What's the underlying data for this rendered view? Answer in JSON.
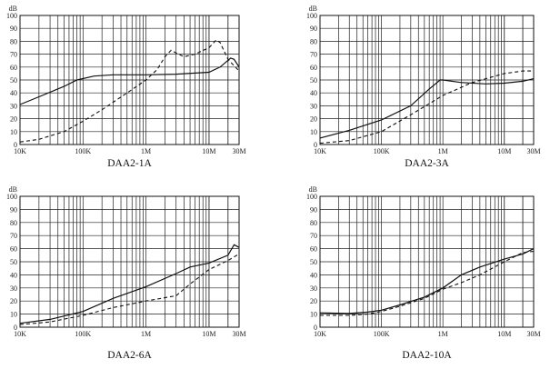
{
  "chart_data": [
    {
      "type": "line",
      "title": "DAA2-1A",
      "xscale": "log",
      "xlim": [
        "10K",
        "30M"
      ],
      "xticks": [
        "10K",
        "100K",
        "1M",
        "10M",
        "30M"
      ],
      "ylabel": "dB",
      "ylim": [
        0,
        100
      ],
      "yticks": [
        "0",
        "10",
        "20",
        "30",
        "40",
        "50",
        "60",
        "70",
        "80",
        "90",
        "100"
      ],
      "grid": true,
      "series": [
        {
          "style": "solid",
          "x": [
            10000,
            20000,
            50000,
            80000,
            150000,
            300000,
            1000000,
            3000000,
            10000000,
            15000000,
            22000000,
            25000000,
            30000000
          ],
          "y": [
            31,
            37,
            45,
            50,
            53,
            54,
            54,
            54.5,
            56,
            60,
            67,
            66,
            60
          ]
        },
        {
          "style": "dashed",
          "x": [
            10000,
            20000,
            50000,
            100000,
            200000,
            500000,
            1000000,
            1500000,
            2000000,
            2500000,
            3000000,
            4000000,
            6000000,
            10000000,
            13000000,
            15000000,
            20000000,
            30000000
          ],
          "y": [
            2,
            4,
            10,
            18,
            27,
            40,
            50,
            58,
            68,
            73,
            71,
            68,
            70,
            75,
            81,
            79,
            66,
            57
          ]
        }
      ]
    },
    {
      "type": "line",
      "title": "DAA2-3A",
      "xscale": "log",
      "xlim": [
        "10K",
        "30M"
      ],
      "xticks": [
        "10K",
        "100K",
        "1M",
        "10M",
        "30M"
      ],
      "ylabel": "dB",
      "ylim": [
        0,
        100
      ],
      "yticks": [
        "0",
        "10",
        "20",
        "30",
        "40",
        "50",
        "60",
        "70",
        "80",
        "90",
        "100"
      ],
      "grid": true,
      "series": [
        {
          "style": "solid",
          "x": [
            10000,
            30000,
            100000,
            300000,
            600000,
            900000,
            1000000,
            2000000,
            5000000,
            10000000,
            20000000,
            30000000
          ],
          "y": [
            5,
            11,
            19,
            30,
            43,
            50,
            50,
            48,
            47,
            47.5,
            49,
            51
          ]
        },
        {
          "style": "dashed",
          "x": [
            10000,
            30000,
            100000,
            300000,
            1000000,
            3000000,
            10000000,
            20000000,
            30000000
          ],
          "y": [
            1,
            3,
            10,
            23,
            38,
            48,
            55,
            57,
            57
          ]
        }
      ]
    },
    {
      "type": "line",
      "title": "DAA2-6A",
      "xscale": "log",
      "xlim": [
        "10K",
        "30M"
      ],
      "xticks": [
        "10K",
        "100K",
        "1M",
        "10M",
        "30M"
      ],
      "ylabel": "dB",
      "ylim": [
        0,
        100
      ],
      "yticks": [
        "0",
        "10",
        "20",
        "30",
        "40",
        "50",
        "60",
        "70",
        "80",
        "90",
        "100"
      ],
      "grid": true,
      "series": [
        {
          "style": "solid",
          "x": [
            10000,
            30000,
            100000,
            300000,
            1000000,
            3000000,
            5000000,
            10000000,
            20000000,
            25000000,
            30000000
          ],
          "y": [
            3,
            6,
            12,
            22,
            31,
            41,
            46,
            49,
            55,
            63,
            61
          ]
        },
        {
          "style": "dashed",
          "x": [
            10000,
            30000,
            100000,
            300000,
            1000000,
            3000000,
            5000000,
            10000000,
            20000000,
            30000000
          ],
          "y": [
            2,
            4,
            9,
            15,
            20,
            24,
            33,
            44,
            51,
            56
          ]
        }
      ]
    },
    {
      "type": "line",
      "title": "DAA2-10A",
      "xscale": "log",
      "xlim": [
        "10K",
        "30M"
      ],
      "xticks": [
        "10K",
        "100K",
        "1M",
        "10M",
        "30M"
      ],
      "ylabel": "dB",
      "ylim": [
        0,
        100
      ],
      "yticks": [
        "0",
        "10",
        "20",
        "30",
        "40",
        "50",
        "60",
        "70",
        "80",
        "90",
        "100"
      ],
      "grid": true,
      "series": [
        {
          "style": "solid",
          "x": [
            10000,
            30000,
            60000,
            100000,
            200000,
            500000,
            1000000,
            2000000,
            4000000,
            10000000,
            20000000,
            30000000
          ],
          "y": [
            11,
            10.5,
            11.5,
            13,
            17,
            23,
            30,
            40,
            46,
            52,
            56,
            60
          ]
        },
        {
          "style": "dashed",
          "x": [
            10000,
            30000,
            60000,
            100000,
            200000,
            500000,
            1000000,
            2000000,
            4000000,
            10000000,
            20000000,
            30000000
          ],
          "y": [
            9,
            9,
            10,
            12,
            16,
            22,
            29,
            34,
            40,
            50,
            57,
            58
          ]
        }
      ]
    }
  ]
}
